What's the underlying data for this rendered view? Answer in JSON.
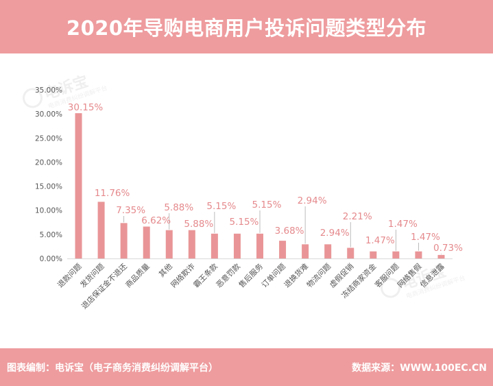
{
  "header": {
    "title": "2020年导购电商用户投诉问题类型分布"
  },
  "footer": {
    "left": "图表编制：电诉宝（电子商务消费纠纷调解平台）",
    "right": "数据来源：WWW.100EC.CN"
  },
  "watermark": {
    "logo_text": "电诉宝",
    "tagline": "电商消费纠纷调解平台"
  },
  "colors": {
    "header": "#ee9c9e",
    "bar": "#e99597",
    "label": "#e5898c",
    "axis_text": "#555555",
    "axis_line": "#d9d9d9"
  },
  "chart_data": {
    "type": "bar",
    "title": "",
    "xlabel": "",
    "ylabel": "",
    "ylim": [
      0,
      35
    ],
    "y_ticks": [
      "0.00%",
      "5.00%",
      "10.00%",
      "15.00%",
      "20.00%",
      "25.00%",
      "30.00%",
      "35.00%"
    ],
    "y_tick_values": [
      0,
      5,
      10,
      15,
      20,
      25,
      30,
      35
    ],
    "grid": false,
    "legend": "none",
    "categories": [
      "退款问题",
      "发货问题",
      "退店保证金不退还",
      "商品质量",
      "其他",
      "网络欺诈",
      "霸王条款",
      "恶意罚款",
      "售后服务",
      "订单问题",
      "退换货难",
      "物流问题",
      "虚假促销",
      "冻结商家资金",
      "客服问题",
      "网络售假",
      "信息泄露"
    ],
    "values": [
      30.15,
      11.76,
      7.35,
      6.62,
      5.88,
      5.88,
      5.15,
      5.15,
      5.15,
      3.68,
      2.94,
      2.94,
      2.21,
      1.47,
      1.47,
      1.47,
      0.73
    ],
    "data_labels": [
      "30.15%",
      "11.76%",
      "7.35%",
      "6.62%",
      "5.88%",
      "5.88%",
      "5.15%",
      "5.15%",
      "5.15%",
      "3.68%",
      "2.94%",
      "2.94%",
      "2.21%",
      "1.47%",
      "1.47%",
      "1.47%",
      "0.73%"
    ]
  }
}
